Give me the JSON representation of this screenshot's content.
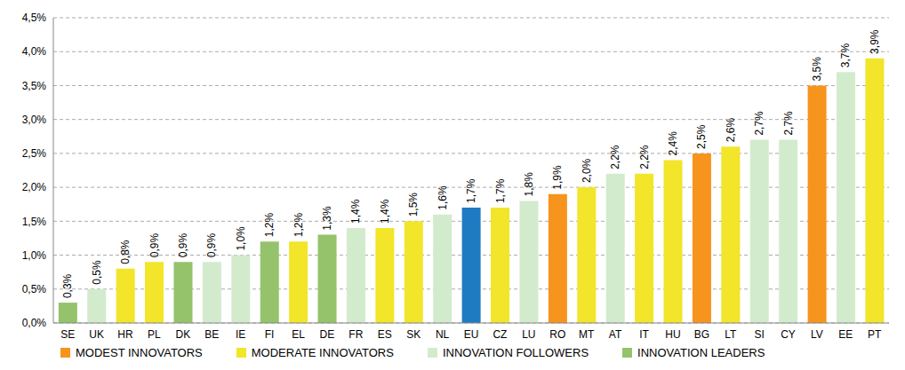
{
  "chart_data": {
    "type": "bar",
    "categories": [
      "SE",
      "UK",
      "HR",
      "PL",
      "DK",
      "BE",
      "IE",
      "FI",
      "EL",
      "DE",
      "FR",
      "ES",
      "SK",
      "NL",
      "EU",
      "CZ",
      "LU",
      "RO",
      "MT",
      "AT",
      "IT",
      "HU",
      "BG",
      "LT",
      "SI",
      "CY",
      "LV",
      "EE",
      "PT"
    ],
    "series": [
      {
        "name": "MODEST INNOVATORS",
        "color": "#f7941d",
        "values": [
          null,
          null,
          null,
          null,
          null,
          null,
          null,
          null,
          null,
          null,
          null,
          null,
          null,
          null,
          null,
          null,
          null,
          1.9,
          null,
          null,
          null,
          null,
          2.5,
          null,
          null,
          null,
          3.5,
          null,
          null
        ],
        "value_labels": [
          null,
          null,
          null,
          null,
          null,
          null,
          null,
          null,
          null,
          null,
          null,
          null,
          null,
          null,
          null,
          null,
          null,
          "1,9%",
          null,
          null,
          null,
          null,
          "2,5%",
          null,
          null,
          null,
          "3,5%",
          null,
          null
        ]
      },
      {
        "name": "MODERATE INNOVATORS",
        "color": "#f2e52a",
        "values": [
          null,
          null,
          0.8,
          0.9,
          null,
          null,
          null,
          null,
          1.2,
          null,
          null,
          1.4,
          1.5,
          null,
          null,
          1.7,
          null,
          null,
          2.0,
          null,
          2.2,
          2.4,
          null,
          2.6,
          null,
          null,
          null,
          null,
          3.9
        ],
        "value_labels": [
          null,
          null,
          "0,8%",
          "0,9%",
          null,
          null,
          null,
          null,
          "1,2%",
          null,
          null,
          "1,4%",
          "1,5%",
          null,
          null,
          "1,7%",
          null,
          null,
          "2,0%",
          null,
          "2,2%",
          "2,4%",
          null,
          "2,6%",
          null,
          null,
          null,
          null,
          "3,9%"
        ]
      },
      {
        "name": "INNOVATION FOLLOWERS",
        "color": "#d3ebcd",
        "values": [
          null,
          0.5,
          null,
          null,
          null,
          0.9,
          1.0,
          null,
          null,
          null,
          1.4,
          null,
          null,
          1.6,
          null,
          null,
          1.8,
          null,
          null,
          2.2,
          null,
          null,
          null,
          null,
          2.7,
          2.7,
          null,
          3.7,
          null
        ],
        "value_labels": [
          null,
          "0,5%",
          null,
          null,
          null,
          "0,9%",
          "1,0%",
          null,
          null,
          null,
          "1,4%",
          null,
          null,
          "1,6%",
          null,
          null,
          "1,8%",
          null,
          null,
          "2,2%",
          null,
          null,
          null,
          null,
          "2,7%",
          "2,7%",
          null,
          "3,7%",
          null
        ]
      },
      {
        "name": "INNOVATION LEADERS",
        "color": "#95c36c",
        "values": [
          0.3,
          null,
          null,
          null,
          0.9,
          null,
          null,
          1.2,
          null,
          1.3,
          null,
          null,
          null,
          null,
          null,
          null,
          null,
          null,
          null,
          null,
          null,
          null,
          null,
          null,
          null,
          null,
          null,
          null,
          null
        ],
        "value_labels": [
          "0,3%",
          null,
          null,
          null,
          "0,9%",
          null,
          null,
          "1,2%",
          null,
          "1,3%",
          null,
          null,
          null,
          null,
          null,
          null,
          null,
          null,
          null,
          null,
          null,
          null,
          null,
          null,
          null,
          null,
          null,
          null,
          null
        ]
      },
      {
        "color": "#1f7bc1",
        "values": [
          null,
          null,
          null,
          null,
          null,
          null,
          null,
          null,
          null,
          null,
          null,
          null,
          null,
          null,
          1.7,
          null,
          null,
          null,
          null,
          null,
          null,
          null,
          null,
          null,
          null,
          null,
          null,
          null,
          null
        ],
        "value_labels": [
          null,
          null,
          null,
          null,
          null,
          null,
          null,
          null,
          null,
          null,
          null,
          null,
          null,
          null,
          "1,7%",
          null,
          null,
          null,
          null,
          null,
          null,
          null,
          null,
          null,
          null,
          null,
          null,
          null,
          null
        ]
      }
    ],
    "ylim": [
      0,
      4.5
    ],
    "yticks": [
      {
        "value": 0,
        "label": "0,0%"
      },
      {
        "value": 0.5,
        "label": "0,5%"
      },
      {
        "value": 1,
        "label": "1,0%"
      },
      {
        "value": 1.5,
        "label": "1,5%"
      },
      {
        "value": 2,
        "label": "2,0%"
      },
      {
        "value": 2.5,
        "label": "2,5%"
      },
      {
        "value": 3,
        "label": "3,0%"
      },
      {
        "value": 3.5,
        "label": "3,5%"
      },
      {
        "value": 4,
        "label": "4,0%"
      },
      {
        "value": 4.5,
        "label": "4,5%"
      }
    ],
    "grid": true,
    "data_labels": true,
    "legend": "bottom"
  }
}
